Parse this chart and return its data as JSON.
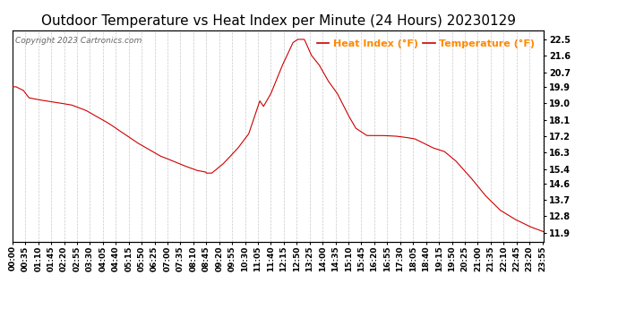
{
  "title": "Outdoor Temperature vs Heat Index per Minute (24 Hours) 20230129",
  "copyright": "Copyright 2023 Cartronics.com",
  "legend_heat": "Heat Index (°F)",
  "legend_temp": "Temperature (°F)",
  "line_color": "#cc0000",
  "legend_color": "#ff8800",
  "copyright_color": "#666666",
  "background_color": "#ffffff",
  "grid_color": "#bbbbbb",
  "yticks": [
    11.9,
    12.8,
    13.7,
    14.6,
    15.4,
    16.3,
    17.2,
    18.1,
    19.0,
    19.9,
    20.7,
    21.6,
    22.5
  ],
  "ylim": [
    11.4,
    23.0
  ],
  "title_fontsize": 11,
  "tick_fontsize": 6.5,
  "legend_fontsize": 8,
  "fig_width": 6.9,
  "fig_height": 3.75,
  "dpi": 100
}
